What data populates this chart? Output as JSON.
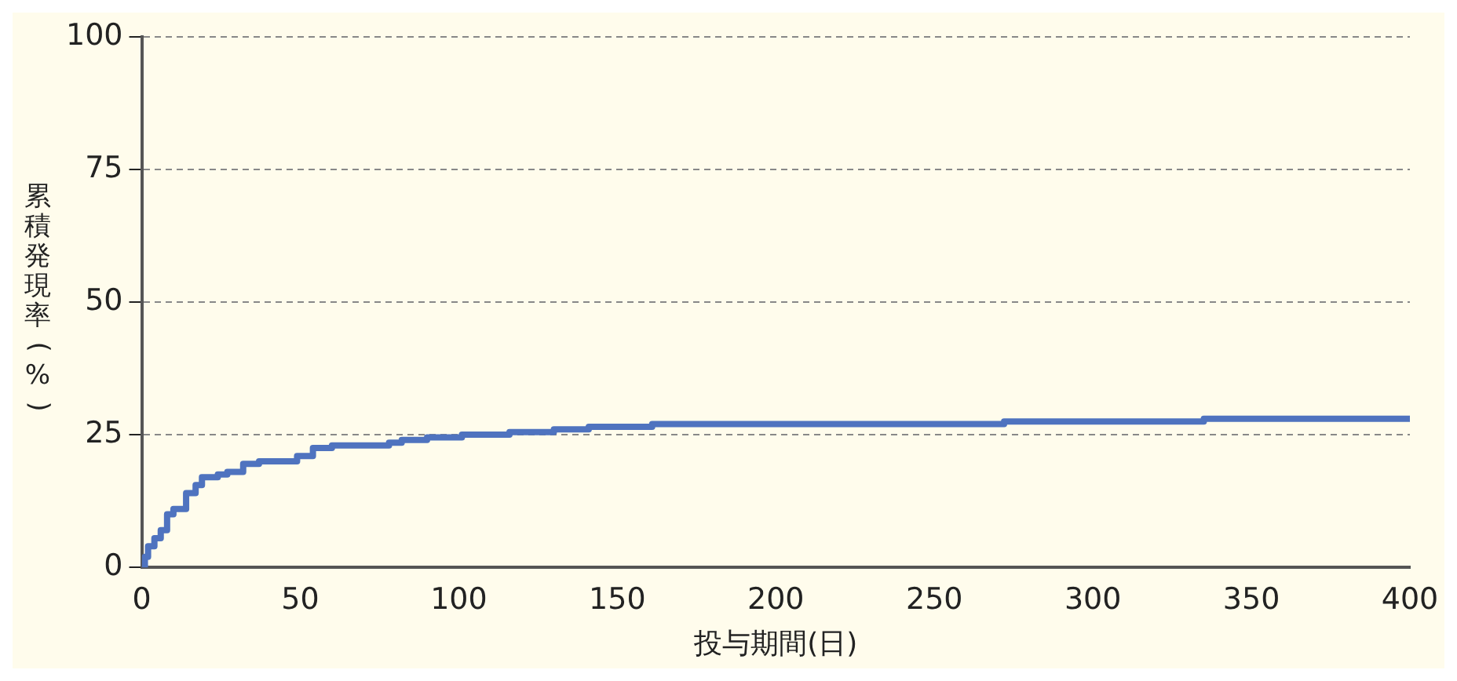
{
  "chart_data": {
    "type": "step",
    "xlabel": "投与期間(日)",
    "ylabel": "累積発現率(%)",
    "x": [
      0,
      1,
      2,
      4,
      6,
      8,
      10,
      14,
      17,
      19,
      24,
      27,
      32,
      37,
      42,
      49,
      54,
      60,
      72,
      78,
      82,
      90,
      101,
      116,
      130,
      141,
      161,
      176,
      200,
      251,
      272,
      300,
      335,
      360,
      400
    ],
    "series": [
      {
        "color": "#4f73bf",
        "values": [
          0,
          2,
          4,
          5.5,
          7,
          10,
          11,
          14,
          15.5,
          17,
          17.5,
          18,
          19.5,
          20,
          20,
          21,
          22.5,
          23,
          23,
          23.5,
          24,
          24.5,
          25,
          25.5,
          26,
          26.5,
          27,
          27,
          27,
          27,
          27.5,
          27.5,
          28,
          28,
          28
        ]
      }
    ],
    "xlim": [
      0,
      400
    ],
    "xticks": [
      0,
      50,
      100,
      150,
      200,
      250,
      300,
      350,
      400
    ],
    "ylim": [
      0,
      100
    ],
    "yticks": [
      0,
      25,
      50,
      75,
      100
    ],
    "grid": "y",
    "legend": false,
    "marker": "none",
    "line_style": "solid"
  }
}
